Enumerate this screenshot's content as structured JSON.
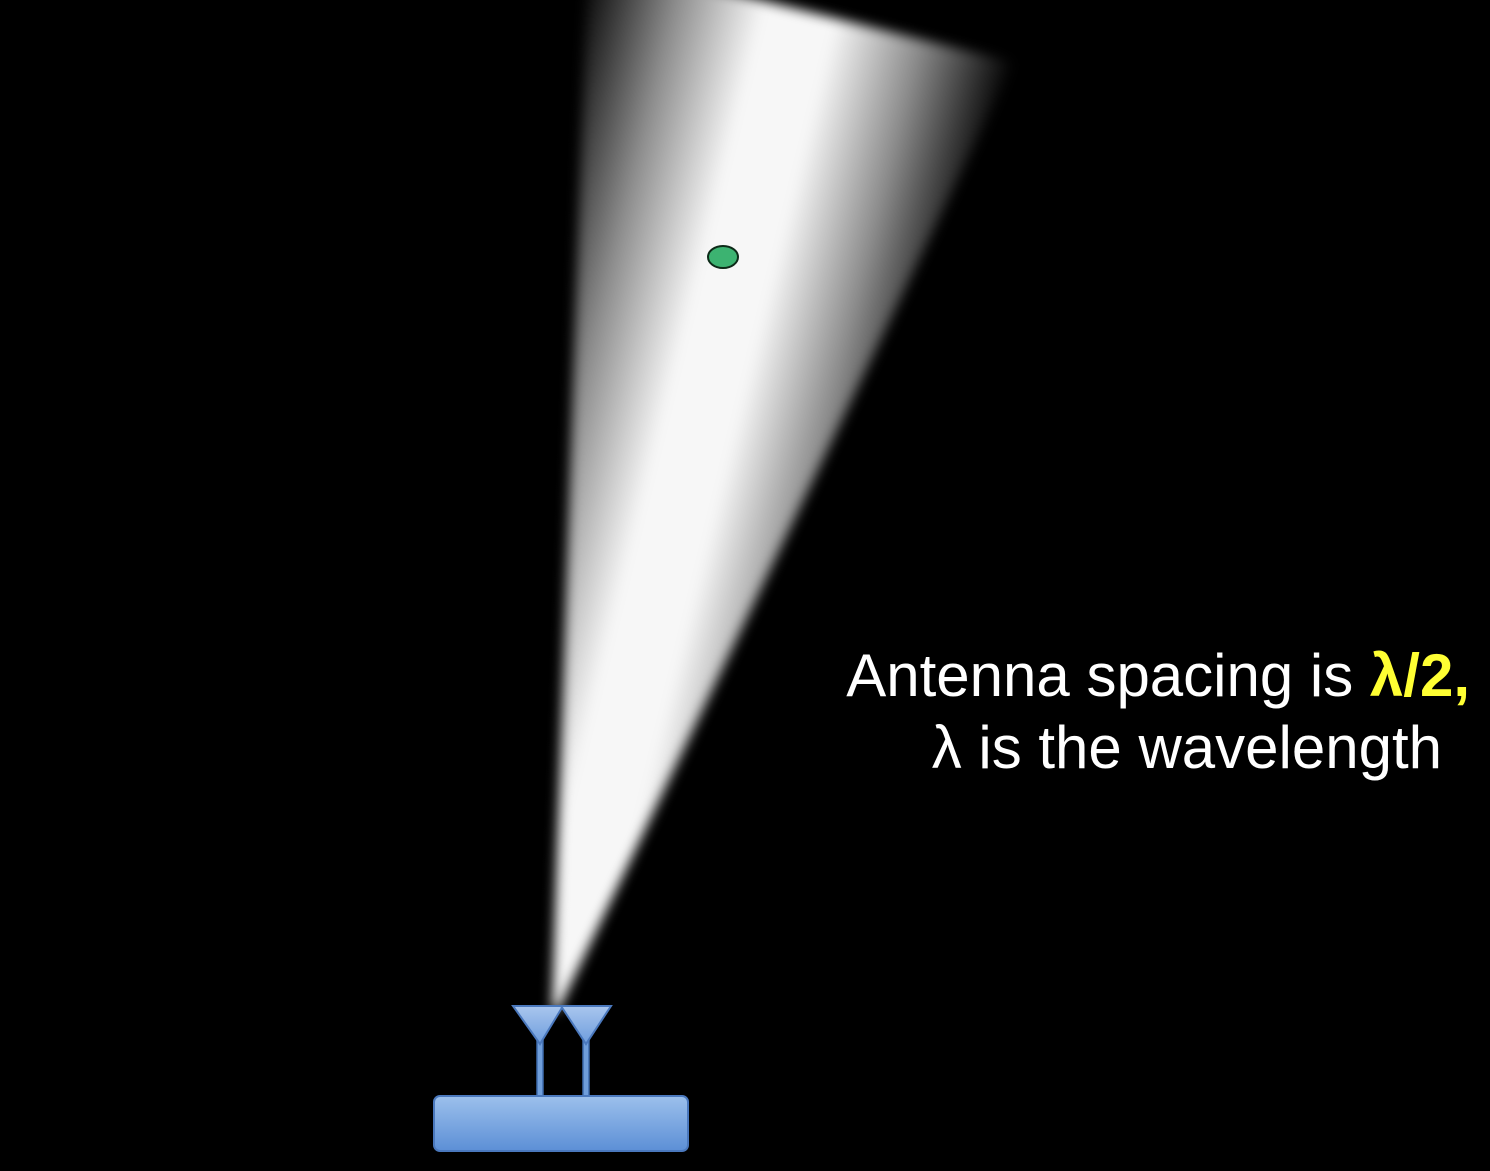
{
  "caption": {
    "line1_text": "Antenna spacing is ",
    "line1_highlight": "λ/2,",
    "line2_text": "λ is the wavelength"
  },
  "colors": {
    "background": "#000000",
    "beam": "#ffffff",
    "target": "#3cb371",
    "antenna": "#8fb4e3",
    "base": "#6f9edb",
    "highlight": "#ffff33",
    "text": "#ffffff"
  },
  "icons": {
    "beam": "beam-cone",
    "target": "target-dot-icon",
    "antenna_left": "antenna-icon",
    "antenna_right": "antenna-icon",
    "base": "transmitter-base-icon"
  }
}
